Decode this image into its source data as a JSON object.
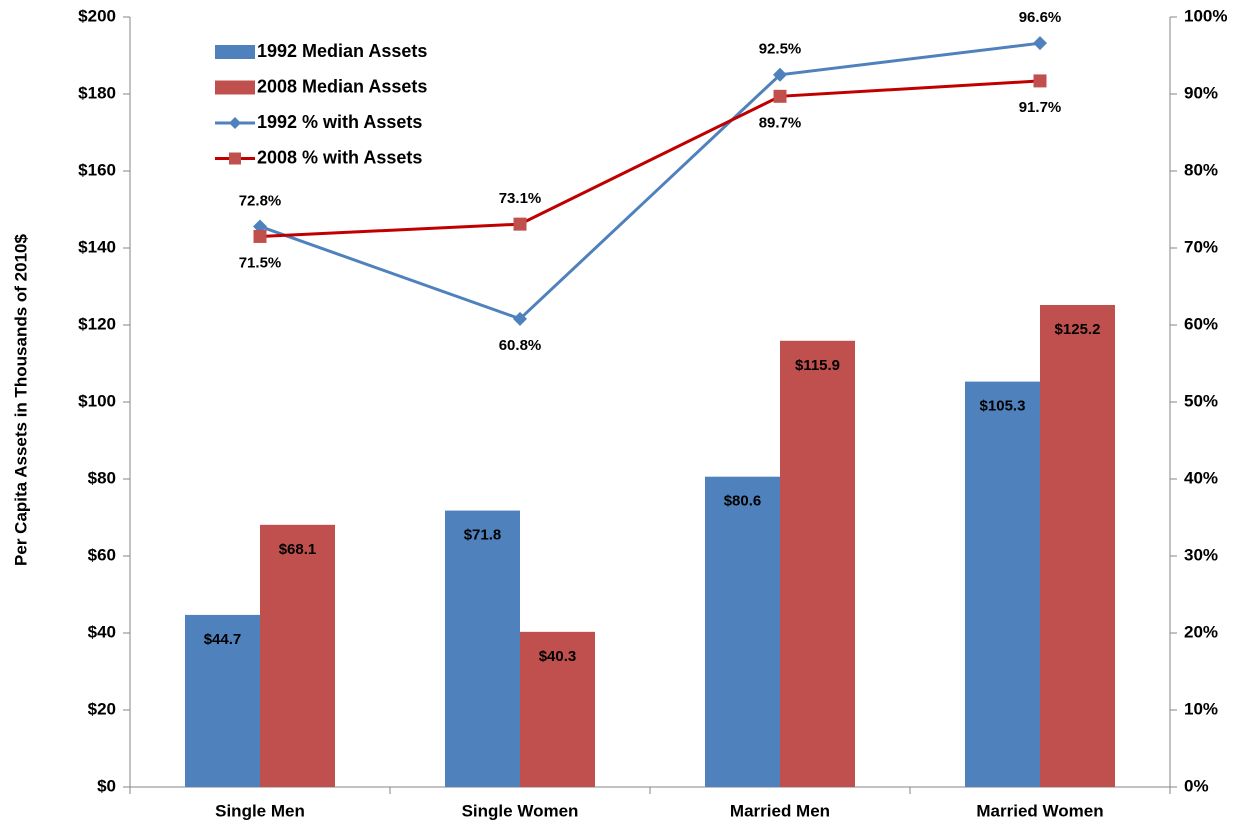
{
  "chart_data": {
    "type": "bar",
    "y_label": "Per Capita Assets in Thousands of 2010$",
    "categories": [
      "Single Men",
      "Single Women",
      "Married Men",
      "Married Women"
    ],
    "series": [
      {
        "name": "1992 Median Assets",
        "type": "bar",
        "color": "#4f81bd",
        "values": [
          44.7,
          71.8,
          80.6,
          105.3
        ],
        "value_labels": [
          "$44.7",
          "$71.8",
          "$80.6",
          "$105.3"
        ]
      },
      {
        "name": "2008 Median Assets",
        "type": "bar",
        "color": "#c0504d",
        "values": [
          68.1,
          40.3,
          115.9,
          125.2
        ],
        "value_labels": [
          "$68.1",
          "$40.3",
          "$115.9",
          "$125.2"
        ]
      },
      {
        "name": "1992 % with Assets",
        "type": "line",
        "axis": "y2",
        "marker": "diamond",
        "color": "#4f81bd",
        "values": [
          72.8,
          60.8,
          92.5,
          96.6
        ],
        "value_labels": [
          "72.8%",
          "60.8%",
          "92.5%",
          "96.6%"
        ]
      },
      {
        "name": "2008 % with Assets",
        "type": "line",
        "axis": "y2",
        "marker": "square",
        "color": "#c00000",
        "marker_color": "#c0504d",
        "values": [
          71.5,
          73.1,
          89.7,
          91.7
        ],
        "value_labels": [
          "71.5%",
          "73.1%",
          "89.7%",
          "91.7%"
        ]
      }
    ],
    "ylim": [
      0,
      200
    ],
    "yticks": [
      {
        "value": 0,
        "label": "$0"
      },
      {
        "value": 20,
        "label": "$20"
      },
      {
        "value": 40,
        "label": "$40"
      },
      {
        "value": 60,
        "label": "$60"
      },
      {
        "value": 80,
        "label": "$80"
      },
      {
        "value": 100,
        "label": "$100"
      },
      {
        "value": 120,
        "label": "$120"
      },
      {
        "value": 140,
        "label": "$140"
      },
      {
        "value": 160,
        "label": "$160"
      },
      {
        "value": 180,
        "label": "$180"
      },
      {
        "value": 200,
        "label": "$200"
      }
    ],
    "y2lim": [
      0,
      100
    ],
    "y2ticks": [
      {
        "value": 0,
        "label": "0%"
      },
      {
        "value": 10,
        "label": "10%"
      },
      {
        "value": 20,
        "label": "20%"
      },
      {
        "value": 30,
        "label": "30%"
      },
      {
        "value": 40,
        "label": "40%"
      },
      {
        "value": 50,
        "label": "50%"
      },
      {
        "value": 60,
        "label": "60%"
      },
      {
        "value": 70,
        "label": "70%"
      },
      {
        "value": 80,
        "label": "80%"
      },
      {
        "value": 90,
        "label": "90%"
      },
      {
        "value": 100,
        "label": "100%"
      }
    ],
    "legend": "upper left",
    "grid": false
  }
}
